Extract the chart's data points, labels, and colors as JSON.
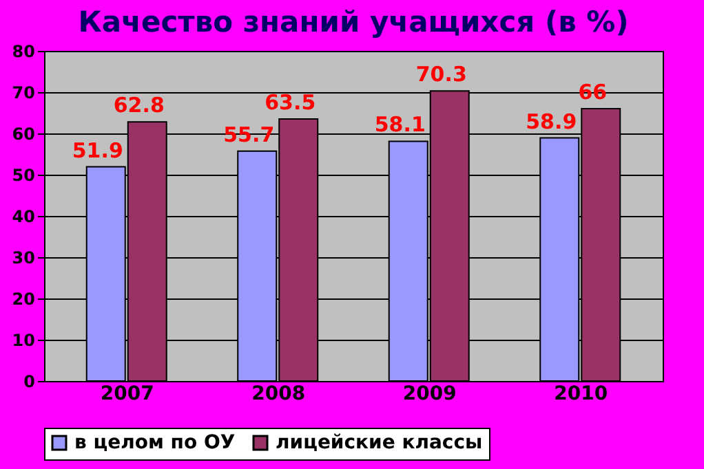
{
  "chart_data": {
    "type": "bar",
    "title": "Качество знаний учащихся (в %)",
    "categories": [
      "2007",
      "2008",
      "2009",
      "2010"
    ],
    "series": [
      {
        "name": "в целом по ОУ",
        "color": "#9999ff",
        "values": [
          51.9,
          55.7,
          58.1,
          58.9
        ]
      },
      {
        "name": "лицейские классы",
        "color": "#993366",
        "values": [
          62.8,
          63.5,
          70.3,
          66
        ]
      }
    ],
    "ylim": [
      0,
      80
    ],
    "yticks": [
      0,
      10,
      20,
      30,
      40,
      50,
      60,
      70,
      80
    ],
    "grid": "y",
    "legend": "bottom",
    "data_labels": true
  }
}
